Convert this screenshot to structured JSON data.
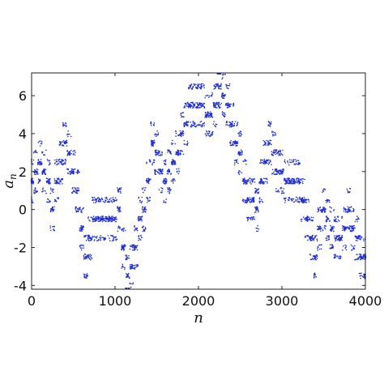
{
  "chart_data": {
    "type": "scatter",
    "title": "",
    "xlabel": "n",
    "ylabel": "a",
    "ylabel_subscript": "n",
    "xlim": [
      0,
      4000
    ],
    "ylim": [
      -4.2,
      7.2
    ],
    "xticks": [
      0,
      1000,
      2000,
      3000,
      4000
    ],
    "xtick_labels": [
      "0",
      "1000",
      "2000",
      "3000",
      "4000"
    ],
    "yticks": [
      -4,
      -2,
      0,
      2,
      4,
      6
    ],
    "ytick_labels": [
      "-4",
      "-2",
      "0",
      "2",
      "4",
      "6"
    ],
    "grid": false,
    "legend": "none",
    "marker_color": "#1f2fd0",
    "series": [
      {
        "values_note": "",
        "x": [
          0,
          50,
          100,
          150,
          200,
          250,
          300,
          350,
          400,
          450,
          500,
          550,
          600,
          650,
          700,
          750,
          800,
          850,
          900,
          950,
          1000,
          1050,
          1100,
          1150,
          1200,
          1250,
          1300,
          1350,
          1400,
          1450,
          1500,
          1550,
          1600,
          1650,
          1700,
          1750,
          1800,
          1850,
          1900,
          1950,
          2000,
          2050,
          2100,
          2150,
          2200,
          2250,
          2300,
          2350,
          2400,
          2450,
          2500,
          2550,
          2600,
          2650,
          2700,
          2750,
          2800,
          2850,
          2900,
          2950,
          3000,
          3050,
          3100,
          3150,
          3200,
          3250,
          3300,
          3350,
          3400,
          3450,
          3500,
          3550,
          3600,
          3650,
          3700,
          3750,
          3800,
          3850,
          3900,
          3950,
          4000
        ],
        "y": [
          1.5,
          2,
          2.5,
          2,
          1.5,
          0,
          1.5,
          2.5,
          3.5,
          3,
          2,
          1,
          -1,
          -2.5,
          -1.5,
          -0.5,
          -0.5,
          -0.5,
          -0.5,
          -0.5,
          -0.5,
          0,
          -2,
          -3.5,
          -3,
          -2,
          -0.5,
          0,
          1.5,
          3.5,
          3,
          2,
          1.5,
          2,
          2.5,
          3,
          4,
          4.5,
          5.5,
          5.5,
          5.5,
          5.5,
          5,
          5,
          5.5,
          6.5,
          6,
          5.5,
          4.5,
          3.5,
          3,
          1.5,
          0.5,
          0.5,
          0,
          1.5,
          2.5,
          3.5,
          3,
          2,
          2,
          1.5,
          1.5,
          1.5,
          1.5,
          0.5,
          -0.5,
          -1.5,
          -2.5,
          -1,
          0,
          -0.5,
          -1,
          -1.5,
          -1.5,
          -1,
          0,
          -1,
          -1.5,
          -2.5,
          -2.5
        ]
      }
    ]
  }
}
